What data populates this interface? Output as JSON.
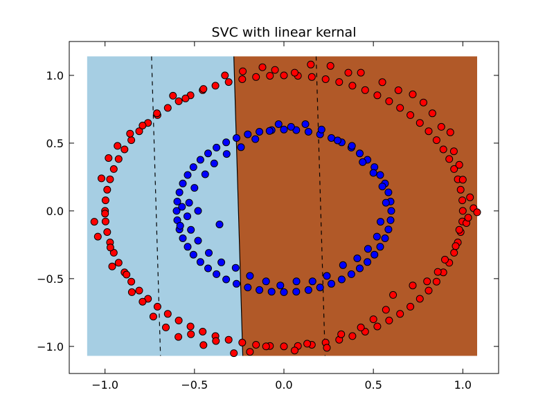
{
  "chart_data": {
    "type": "scatter",
    "title": "SVC with linear kernal",
    "xlabel": "",
    "ylabel": "",
    "xlim": [
      -1.2,
      1.2
    ],
    "ylim": [
      -1.2,
      1.25
    ],
    "x_ticks": [
      -1.0,
      -0.5,
      0.0,
      0.5,
      1.0
    ],
    "x_tick_labels": [
      "−1.0",
      "−0.5",
      "0.0",
      "0.5",
      "1.0"
    ],
    "y_ticks": [
      -1.0,
      -0.5,
      0.0,
      0.5,
      1.0
    ],
    "y_tick_labels": [
      "−1.0",
      "−0.5",
      "0.0",
      "0.5",
      "1.0"
    ],
    "grid": false,
    "legend": "none",
    "decision_regions": {
      "x_range": [
        -1.1,
        1.08
      ],
      "y_range": [
        -1.07,
        1.14
      ],
      "left_class_color": "#a6cee3",
      "right_class_color": "#b15928"
    },
    "decision_boundary": {
      "style": "solid",
      "points": [
        [
          -0.28,
          1.14
        ],
        [
          -0.23,
          -1.07
        ]
      ]
    },
    "margin_lines": [
      {
        "style": "dashed",
        "points": [
          [
            -0.74,
            1.14
          ],
          [
            -0.69,
            -1.07
          ]
        ]
      },
      {
        "style": "dashed",
        "points": [
          [
            0.18,
            1.14
          ],
          [
            0.23,
            -1.07
          ]
        ]
      }
    ],
    "series": [
      {
        "color": "#ff0000",
        "marker": "circle",
        "points": [
          [
            1.0,
            0.0
          ],
          [
            0.997,
            0.078
          ],
          [
            0.988,
            0.156
          ],
          [
            0.972,
            0.233
          ],
          [
            0.951,
            0.309
          ],
          [
            0.924,
            0.383
          ],
          [
            0.891,
            0.454
          ],
          [
            0.853,
            0.522
          ],
          [
            0.809,
            0.588
          ],
          [
            0.76,
            0.649
          ],
          [
            0.707,
            0.707
          ],
          [
            0.649,
            0.76
          ],
          [
            0.588,
            0.809
          ],
          [
            0.522,
            0.853
          ],
          [
            0.454,
            0.891
          ],
          [
            0.383,
            0.924
          ],
          [
            0.309,
            0.951
          ],
          [
            0.233,
            0.972
          ],
          [
            0.156,
            0.988
          ],
          [
            0.078,
            0.997
          ],
          [
            0.0,
            1.0
          ],
          [
            -0.078,
            0.997
          ],
          [
            -0.156,
            0.988
          ],
          [
            -0.233,
            0.972
          ],
          [
            -0.309,
            0.951
          ],
          [
            -0.383,
            0.924
          ],
          [
            -0.454,
            0.891
          ],
          [
            -0.522,
            0.853
          ],
          [
            -0.588,
            0.809
          ],
          [
            -0.649,
            0.76
          ],
          [
            -0.707,
            0.707
          ],
          [
            -0.76,
            0.649
          ],
          [
            -0.809,
            0.588
          ],
          [
            -0.853,
            0.522
          ],
          [
            -0.891,
            0.454
          ],
          [
            -0.924,
            0.383
          ],
          [
            -0.951,
            0.309
          ],
          [
            -0.972,
            0.233
          ],
          [
            -0.988,
            0.156
          ],
          [
            -0.997,
            0.078
          ],
          [
            -1.0,
            0.0
          ],
          [
            -0.997,
            -0.078
          ],
          [
            -0.988,
            -0.156
          ],
          [
            -0.972,
            -0.233
          ],
          [
            -0.951,
            -0.309
          ],
          [
            -0.924,
            -0.383
          ],
          [
            -0.891,
            -0.454
          ],
          [
            -0.853,
            -0.522
          ],
          [
            -0.809,
            -0.588
          ],
          [
            -0.76,
            -0.649
          ],
          [
            -0.707,
            -0.707
          ],
          [
            -0.649,
            -0.76
          ],
          [
            -0.588,
            -0.809
          ],
          [
            -0.522,
            -0.853
          ],
          [
            -0.454,
            -0.891
          ],
          [
            -0.383,
            -0.924
          ],
          [
            -0.309,
            -0.951
          ],
          [
            -0.233,
            -0.972
          ],
          [
            -0.156,
            -0.988
          ],
          [
            -0.078,
            -0.997
          ],
          [
            0.0,
            -1.0
          ],
          [
            0.078,
            -0.997
          ],
          [
            0.156,
            -0.988
          ],
          [
            0.233,
            -0.972
          ],
          [
            0.309,
            -0.951
          ],
          [
            0.383,
            -0.924
          ],
          [
            0.454,
            -0.891
          ],
          [
            0.522,
            -0.853
          ],
          [
            0.588,
            -0.809
          ],
          [
            0.649,
            -0.76
          ],
          [
            0.707,
            -0.707
          ],
          [
            0.76,
            -0.649
          ],
          [
            0.809,
            -0.588
          ],
          [
            0.853,
            -0.522
          ],
          [
            0.891,
            -0.454
          ],
          [
            0.924,
            -0.383
          ],
          [
            0.951,
            -0.309
          ],
          [
            0.972,
            -0.233
          ],
          [
            0.988,
            -0.156
          ],
          [
            0.997,
            -0.078
          ],
          [
            1.06,
            0.02
          ],
          [
            1.04,
            0.1
          ],
          [
            1.02,
            -0.09
          ],
          [
            1.0,
            0.23
          ],
          [
            0.98,
            0.34
          ],
          [
            0.95,
            0.44
          ],
          [
            0.93,
            0.58
          ],
          [
            0.88,
            0.62
          ],
          [
            0.83,
            0.72
          ],
          [
            0.78,
            0.8
          ],
          [
            0.72,
            0.86
          ],
          [
            0.64,
            0.89
          ],
          [
            0.55,
            0.95
          ],
          [
            0.43,
            1.02
          ],
          [
            0.36,
            1.02
          ],
          [
            0.26,
            1.07
          ],
          [
            0.15,
            1.08
          ],
          [
            0.06,
            1.02
          ],
          [
            -0.05,
            1.04
          ],
          [
            -0.12,
            1.06
          ],
          [
            -0.23,
            1.03
          ],
          [
            -0.33,
            1.0
          ],
          [
            -0.45,
            0.9
          ],
          [
            -0.55,
            0.83
          ],
          [
            -0.62,
            0.85
          ],
          [
            -0.71,
            0.72
          ],
          [
            -0.79,
            0.63
          ],
          [
            -0.86,
            0.57
          ],
          [
            -0.93,
            0.48
          ],
          [
            -0.98,
            0.39
          ],
          [
            -1.02,
            0.24
          ],
          [
            -1.0,
            -0.02
          ],
          [
            -1.06,
            -0.08
          ],
          [
            -1.04,
            -0.19
          ],
          [
            -0.97,
            -0.27
          ],
          [
            -0.96,
            -0.41
          ],
          [
            -0.88,
            -0.47
          ],
          [
            -0.85,
            -0.6
          ],
          [
            -0.79,
            -0.67
          ],
          [
            -0.73,
            -0.78
          ],
          [
            -0.66,
            -0.86
          ],
          [
            -0.59,
            -0.93
          ],
          [
            -0.52,
            -0.91
          ],
          [
            -0.45,
            -0.99
          ],
          [
            -0.38,
            -0.96
          ],
          [
            -0.28,
            -1.05
          ],
          [
            -0.19,
            -1.04
          ],
          [
            -0.1,
            -1.0
          ],
          [
            0.06,
            -1.03
          ],
          [
            0.13,
            -0.98
          ],
          [
            0.24,
            -1.01
          ],
          [
            0.32,
            -0.91
          ],
          [
            0.43,
            -0.86
          ],
          [
            0.5,
            -0.8
          ],
          [
            0.57,
            -0.73
          ],
          [
            0.61,
            -0.62
          ],
          [
            0.72,
            -0.55
          ],
          [
            0.8,
            -0.52
          ],
          [
            0.86,
            -0.45
          ],
          [
            0.9,
            -0.36
          ],
          [
            0.96,
            -0.26
          ],
          [
            0.98,
            -0.14
          ],
          [
            1.03,
            -0.05
          ],
          [
            1.08,
            -0.01
          ]
        ]
      },
      {
        "color": "#0000ff",
        "marker": "circle",
        "points": [
          [
            0.6,
            0.0
          ],
          [
            0.596,
            0.069
          ],
          [
            0.584,
            0.137
          ],
          [
            0.565,
            0.202
          ],
          [
            0.538,
            0.265
          ],
          [
            0.506,
            0.323
          ],
          [
            0.467,
            0.377
          ],
          [
            0.424,
            0.424
          ],
          [
            0.377,
            0.467
          ],
          [
            0.323,
            0.506
          ],
          [
            0.265,
            0.538
          ],
          [
            0.202,
            0.565
          ],
          [
            0.137,
            0.584
          ],
          [
            0.069,
            0.596
          ],
          [
            0.0,
            0.6
          ],
          [
            -0.069,
            0.596
          ],
          [
            -0.137,
            0.584
          ],
          [
            -0.202,
            0.565
          ],
          [
            -0.265,
            0.538
          ],
          [
            -0.323,
            0.506
          ],
          [
            -0.377,
            0.467
          ],
          [
            -0.424,
            0.424
          ],
          [
            -0.467,
            0.377
          ],
          [
            -0.506,
            0.323
          ],
          [
            -0.538,
            0.265
          ],
          [
            -0.565,
            0.202
          ],
          [
            -0.584,
            0.137
          ],
          [
            -0.596,
            0.069
          ],
          [
            -0.6,
            0.0
          ],
          [
            -0.596,
            -0.069
          ],
          [
            -0.584,
            -0.137
          ],
          [
            -0.565,
            -0.202
          ],
          [
            -0.538,
            -0.265
          ],
          [
            -0.506,
            -0.323
          ],
          [
            -0.467,
            -0.377
          ],
          [
            -0.424,
            -0.424
          ],
          [
            -0.377,
            -0.467
          ],
          [
            -0.323,
            -0.506
          ],
          [
            -0.265,
            -0.538
          ],
          [
            -0.202,
            -0.565
          ],
          [
            -0.137,
            -0.584
          ],
          [
            -0.069,
            -0.596
          ],
          [
            0.0,
            -0.6
          ],
          [
            0.069,
            -0.596
          ],
          [
            0.137,
            -0.584
          ],
          [
            0.202,
            -0.565
          ],
          [
            0.265,
            -0.538
          ],
          [
            0.323,
            -0.506
          ],
          [
            0.377,
            -0.467
          ],
          [
            0.424,
            -0.424
          ],
          [
            0.467,
            -0.377
          ],
          [
            0.506,
            -0.323
          ],
          [
            0.538,
            -0.265
          ],
          [
            0.565,
            -0.202
          ],
          [
            0.584,
            -0.137
          ],
          [
            0.596,
            -0.069
          ],
          [
            -0.03,
            0.64
          ],
          [
            0.04,
            0.62
          ],
          [
            0.12,
            0.64
          ],
          [
            0.21,
            0.6
          ],
          [
            0.3,
            0.52
          ],
          [
            0.38,
            0.48
          ],
          [
            0.44,
            0.36
          ],
          [
            0.5,
            0.28
          ],
          [
            0.55,
            0.18
          ],
          [
            0.57,
            0.06
          ],
          [
            0.54,
            -0.08
          ],
          [
            0.52,
            -0.19
          ],
          [
            0.47,
            -0.28
          ],
          [
            0.41,
            -0.35
          ],
          [
            0.33,
            -0.4
          ],
          [
            0.24,
            -0.48
          ],
          [
            0.16,
            -0.52
          ],
          [
            0.07,
            -0.52
          ],
          [
            -0.02,
            -0.55
          ],
          [
            -0.1,
            -0.52
          ],
          [
            -0.19,
            -0.48
          ],
          [
            -0.27,
            -0.42
          ],
          [
            -0.35,
            -0.38
          ],
          [
            -0.42,
            -0.31
          ],
          [
            -0.48,
            -0.22
          ],
          [
            -0.52,
            -0.14
          ],
          [
            -0.54,
            -0.04
          ],
          [
            -0.53,
            0.06
          ],
          [
            -0.5,
            0.17
          ],
          [
            -0.44,
            0.27
          ],
          [
            -0.39,
            0.35
          ],
          [
            -0.32,
            0.42
          ],
          [
            -0.24,
            0.47
          ],
          [
            -0.16,
            0.53
          ],
          [
            -0.08,
            0.59
          ],
          [
            -0.57,
            0.03
          ],
          [
            -0.48,
            0.0
          ],
          [
            -0.36,
            -0.1
          ],
          [
            -0.58,
            -0.11
          ]
        ]
      }
    ]
  }
}
